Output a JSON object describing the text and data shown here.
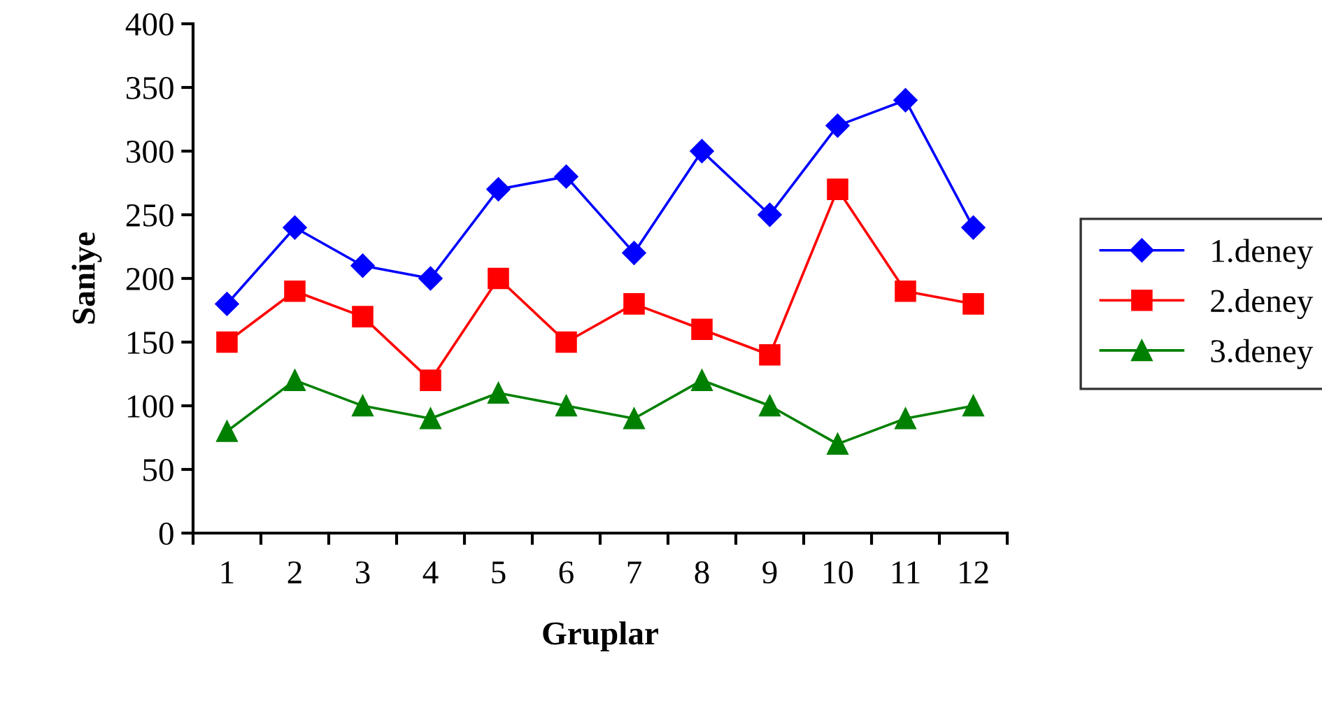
{
  "chart_data": {
    "type": "line",
    "xlabel": "Gruplar",
    "ylabel": "Saniye",
    "categories": [
      "1",
      "2",
      "3",
      "4",
      "5",
      "6",
      "7",
      "8",
      "9",
      "10",
      "11",
      "12"
    ],
    "series": [
      {
        "name": "1.deney",
        "color": "#0000ff",
        "marker": "diamond",
        "values": [
          180,
          240,
          210,
          200,
          270,
          280,
          220,
          300,
          250,
          320,
          340,
          240
        ]
      },
      {
        "name": "2.deney",
        "color": "#ff0000",
        "marker": "square",
        "values": [
          150,
          190,
          170,
          120,
          200,
          150,
          180,
          160,
          140,
          270,
          190,
          180
        ]
      },
      {
        "name": "3.deney",
        "color": "#008000",
        "marker": "triangle",
        "values": [
          80,
          120,
          100,
          90,
          110,
          100,
          90,
          120,
          100,
          70,
          90,
          100
        ]
      }
    ],
    "ylim": [
      0,
      400
    ],
    "yticks": [
      0,
      50,
      100,
      150,
      200,
      250,
      300,
      350,
      400
    ],
    "grid": false,
    "legend": "right",
    "line_style": "solid"
  }
}
